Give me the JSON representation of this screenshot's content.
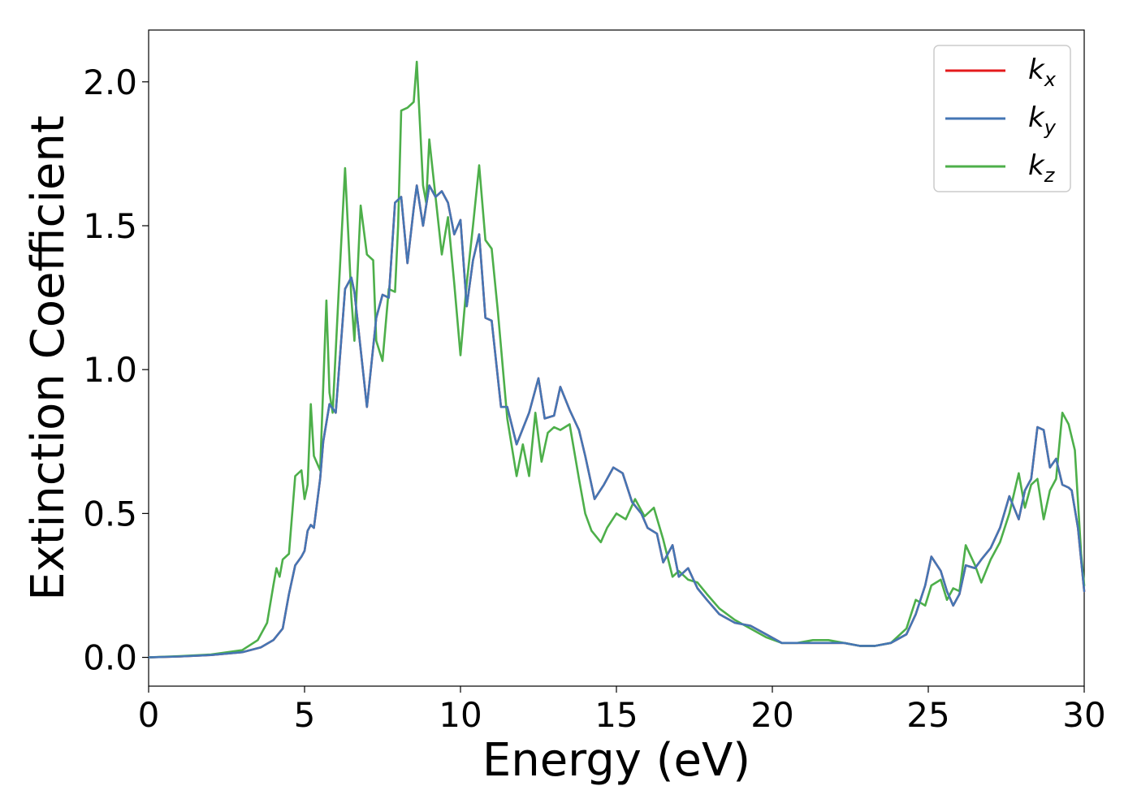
{
  "chart_data": {
    "type": "line",
    "xlabel": "Energy (eV)",
    "ylabel": "Extinction Coefficient",
    "xlim": [
      0,
      30
    ],
    "ylim": [
      -0.1,
      2.18
    ],
    "xticks": [
      0,
      5,
      10,
      15,
      20,
      25,
      30
    ],
    "yticks": [
      0.0,
      0.5,
      1.0,
      1.5,
      2.0
    ],
    "xtick_labels": [
      "0",
      "5",
      "10",
      "15",
      "20",
      "25",
      "30"
    ],
    "ytick_labels": [
      "0.0",
      "0.5",
      "1.0",
      "1.5",
      "2.0"
    ],
    "grid": false,
    "legend_position": "top-right",
    "series": [
      {
        "name": "k",
        "subscript": "x",
        "color": "#e41a1c",
        "x": [
          0,
          1,
          2,
          3,
          3.6,
          4,
          4.3,
          4.5,
          4.7,
          4.9,
          5.0,
          5.1,
          5.2,
          5.3,
          5.5,
          5.6,
          5.8,
          6.0,
          6.3,
          6.5,
          6.6,
          7.0,
          7.3,
          7.5,
          7.7,
          7.9,
          8.1,
          8.3,
          8.5,
          8.6,
          8.8,
          9.0,
          9.2,
          9.4,
          9.6,
          9.8,
          10.0,
          10.2,
          10.4,
          10.6,
          10.8,
          11.0,
          11.3,
          11.5,
          11.8,
          12.2,
          12.5,
          12.7,
          13.0,
          13.2,
          13.5,
          13.8,
          14.0,
          14.3,
          14.6,
          14.9,
          15.2,
          15.5,
          15.8,
          16.0,
          16.3,
          16.5,
          16.8,
          17.0,
          17.3,
          17.6,
          17.9,
          18.3,
          18.8,
          19.3,
          19.8,
          20.3,
          20.8,
          21.3,
          21.8,
          22.3,
          22.8,
          23.3,
          23.8,
          24.3,
          24.6,
          24.9,
          25.1,
          25.4,
          25.6,
          25.8,
          26.0,
          26.2,
          26.5,
          26.7,
          27.0,
          27.3,
          27.6,
          27.9,
          28.1,
          28.3,
          28.5,
          28.7,
          28.9,
          29.1,
          29.3,
          29.5,
          29.6,
          29.8,
          30.0
        ],
        "values": [
          0,
          0.003,
          0.008,
          0.018,
          0.035,
          0.06,
          0.1,
          0.22,
          0.32,
          0.35,
          0.37,
          0.44,
          0.46,
          0.45,
          0.62,
          0.75,
          0.88,
          0.85,
          1.28,
          1.32,
          1.27,
          0.87,
          1.18,
          1.26,
          1.25,
          1.58,
          1.6,
          1.37,
          1.56,
          1.64,
          1.5,
          1.64,
          1.6,
          1.62,
          1.58,
          1.47,
          1.52,
          1.22,
          1.38,
          1.47,
          1.18,
          1.17,
          0.87,
          0.87,
          0.74,
          0.85,
          0.97,
          0.83,
          0.84,
          0.94,
          0.86,
          0.79,
          0.7,
          0.55,
          0.6,
          0.66,
          0.64,
          0.54,
          0.5,
          0.45,
          0.43,
          0.33,
          0.39,
          0.28,
          0.31,
          0.24,
          0.2,
          0.15,
          0.12,
          0.11,
          0.08,
          0.05,
          0.05,
          0.05,
          0.05,
          0.05,
          0.04,
          0.04,
          0.05,
          0.08,
          0.15,
          0.25,
          0.35,
          0.3,
          0.23,
          0.18,
          0.22,
          0.32,
          0.31,
          0.34,
          0.38,
          0.45,
          0.56,
          0.48,
          0.58,
          0.62,
          0.8,
          0.79,
          0.66,
          0.69,
          0.6,
          0.59,
          0.58,
          0.45,
          0.23
        ]
      },
      {
        "name": "k",
        "subscript": "y",
        "color": "#4476b4",
        "x": [
          0,
          1,
          2,
          3,
          3.6,
          4,
          4.3,
          4.5,
          4.7,
          4.9,
          5.0,
          5.1,
          5.2,
          5.3,
          5.5,
          5.6,
          5.8,
          6.0,
          6.3,
          6.5,
          6.6,
          7.0,
          7.3,
          7.5,
          7.7,
          7.9,
          8.1,
          8.3,
          8.5,
          8.6,
          8.8,
          9.0,
          9.2,
          9.4,
          9.6,
          9.8,
          10.0,
          10.2,
          10.4,
          10.6,
          10.8,
          11.0,
          11.3,
          11.5,
          11.8,
          12.2,
          12.5,
          12.7,
          13.0,
          13.2,
          13.5,
          13.8,
          14.0,
          14.3,
          14.6,
          14.9,
          15.2,
          15.5,
          15.8,
          16.0,
          16.3,
          16.5,
          16.8,
          17.0,
          17.3,
          17.6,
          17.9,
          18.3,
          18.8,
          19.3,
          19.8,
          20.3,
          20.8,
          21.3,
          21.8,
          22.3,
          22.8,
          23.3,
          23.8,
          24.3,
          24.6,
          24.9,
          25.1,
          25.4,
          25.6,
          25.8,
          26.0,
          26.2,
          26.5,
          26.7,
          27.0,
          27.3,
          27.6,
          27.9,
          28.1,
          28.3,
          28.5,
          28.7,
          28.9,
          29.1,
          29.3,
          29.5,
          29.6,
          29.8,
          30.0
        ],
        "values": [
          0,
          0.003,
          0.008,
          0.018,
          0.035,
          0.06,
          0.1,
          0.22,
          0.32,
          0.35,
          0.37,
          0.44,
          0.46,
          0.45,
          0.62,
          0.75,
          0.88,
          0.85,
          1.28,
          1.32,
          1.27,
          0.87,
          1.18,
          1.26,
          1.25,
          1.58,
          1.6,
          1.37,
          1.56,
          1.64,
          1.5,
          1.64,
          1.6,
          1.62,
          1.58,
          1.47,
          1.52,
          1.22,
          1.38,
          1.47,
          1.18,
          1.17,
          0.87,
          0.87,
          0.74,
          0.85,
          0.97,
          0.83,
          0.84,
          0.94,
          0.86,
          0.79,
          0.7,
          0.55,
          0.6,
          0.66,
          0.64,
          0.54,
          0.5,
          0.45,
          0.43,
          0.33,
          0.39,
          0.28,
          0.31,
          0.24,
          0.2,
          0.15,
          0.12,
          0.11,
          0.08,
          0.05,
          0.05,
          0.05,
          0.05,
          0.05,
          0.04,
          0.04,
          0.05,
          0.08,
          0.15,
          0.25,
          0.35,
          0.3,
          0.23,
          0.18,
          0.22,
          0.32,
          0.31,
          0.34,
          0.38,
          0.45,
          0.56,
          0.48,
          0.58,
          0.62,
          0.8,
          0.79,
          0.66,
          0.69,
          0.6,
          0.59,
          0.58,
          0.45,
          0.23
        ]
      },
      {
        "name": "k",
        "subscript": "z",
        "color": "#4daf4a",
        "x": [
          0,
          1,
          2,
          3,
          3.5,
          3.8,
          4.0,
          4.1,
          4.2,
          4.3,
          4.5,
          4.7,
          4.9,
          5.0,
          5.1,
          5.2,
          5.3,
          5.5,
          5.7,
          5.8,
          5.9,
          6.1,
          6.3,
          6.5,
          6.6,
          6.8,
          7.0,
          7.2,
          7.3,
          7.5,
          7.7,
          7.9,
          8.0,
          8.1,
          8.3,
          8.5,
          8.6,
          8.8,
          8.9,
          9.0,
          9.2,
          9.4,
          9.6,
          9.8,
          10.0,
          10.2,
          10.4,
          10.6,
          10.8,
          11.0,
          11.2,
          11.5,
          11.8,
          12.0,
          12.2,
          12.4,
          12.6,
          12.8,
          13.0,
          13.2,
          13.5,
          13.8,
          14.0,
          14.2,
          14.5,
          14.7,
          15.0,
          15.3,
          15.6,
          15.9,
          16.2,
          16.5,
          16.8,
          17.0,
          17.3,
          17.6,
          17.9,
          18.3,
          18.8,
          19.3,
          19.8,
          20.3,
          20.8,
          21.3,
          21.8,
          22.3,
          22.8,
          23.3,
          23.8,
          24.3,
          24.6,
          24.9,
          25.1,
          25.4,
          25.6,
          25.8,
          26.0,
          26.2,
          26.5,
          26.7,
          27.0,
          27.3,
          27.6,
          27.9,
          28.1,
          28.3,
          28.5,
          28.7,
          28.9,
          29.1,
          29.3,
          29.5,
          29.7,
          29.9,
          30.0
        ],
        "values": [
          0,
          0.004,
          0.01,
          0.025,
          0.06,
          0.12,
          0.25,
          0.31,
          0.28,
          0.34,
          0.36,
          0.63,
          0.65,
          0.55,
          0.6,
          0.88,
          0.7,
          0.65,
          1.24,
          0.92,
          0.85,
          1.28,
          1.7,
          1.25,
          1.1,
          1.57,
          1.4,
          1.38,
          1.1,
          1.03,
          1.28,
          1.27,
          1.5,
          1.9,
          1.91,
          1.93,
          2.07,
          1.64,
          1.58,
          1.8,
          1.6,
          1.4,
          1.53,
          1.3,
          1.05,
          1.3,
          1.5,
          1.71,
          1.45,
          1.42,
          1.2,
          0.83,
          0.63,
          0.74,
          0.63,
          0.85,
          0.68,
          0.78,
          0.8,
          0.79,
          0.81,
          0.62,
          0.5,
          0.44,
          0.4,
          0.45,
          0.5,
          0.48,
          0.55,
          0.49,
          0.52,
          0.41,
          0.28,
          0.3,
          0.27,
          0.26,
          0.22,
          0.17,
          0.13,
          0.1,
          0.07,
          0.05,
          0.05,
          0.06,
          0.06,
          0.05,
          0.04,
          0.04,
          0.05,
          0.1,
          0.2,
          0.18,
          0.25,
          0.27,
          0.2,
          0.24,
          0.23,
          0.39,
          0.32,
          0.26,
          0.34,
          0.4,
          0.5,
          0.64,
          0.52,
          0.6,
          0.62,
          0.48,
          0.58,
          0.62,
          0.85,
          0.81,
          0.72,
          0.36,
          0.25
        ]
      }
    ]
  }
}
